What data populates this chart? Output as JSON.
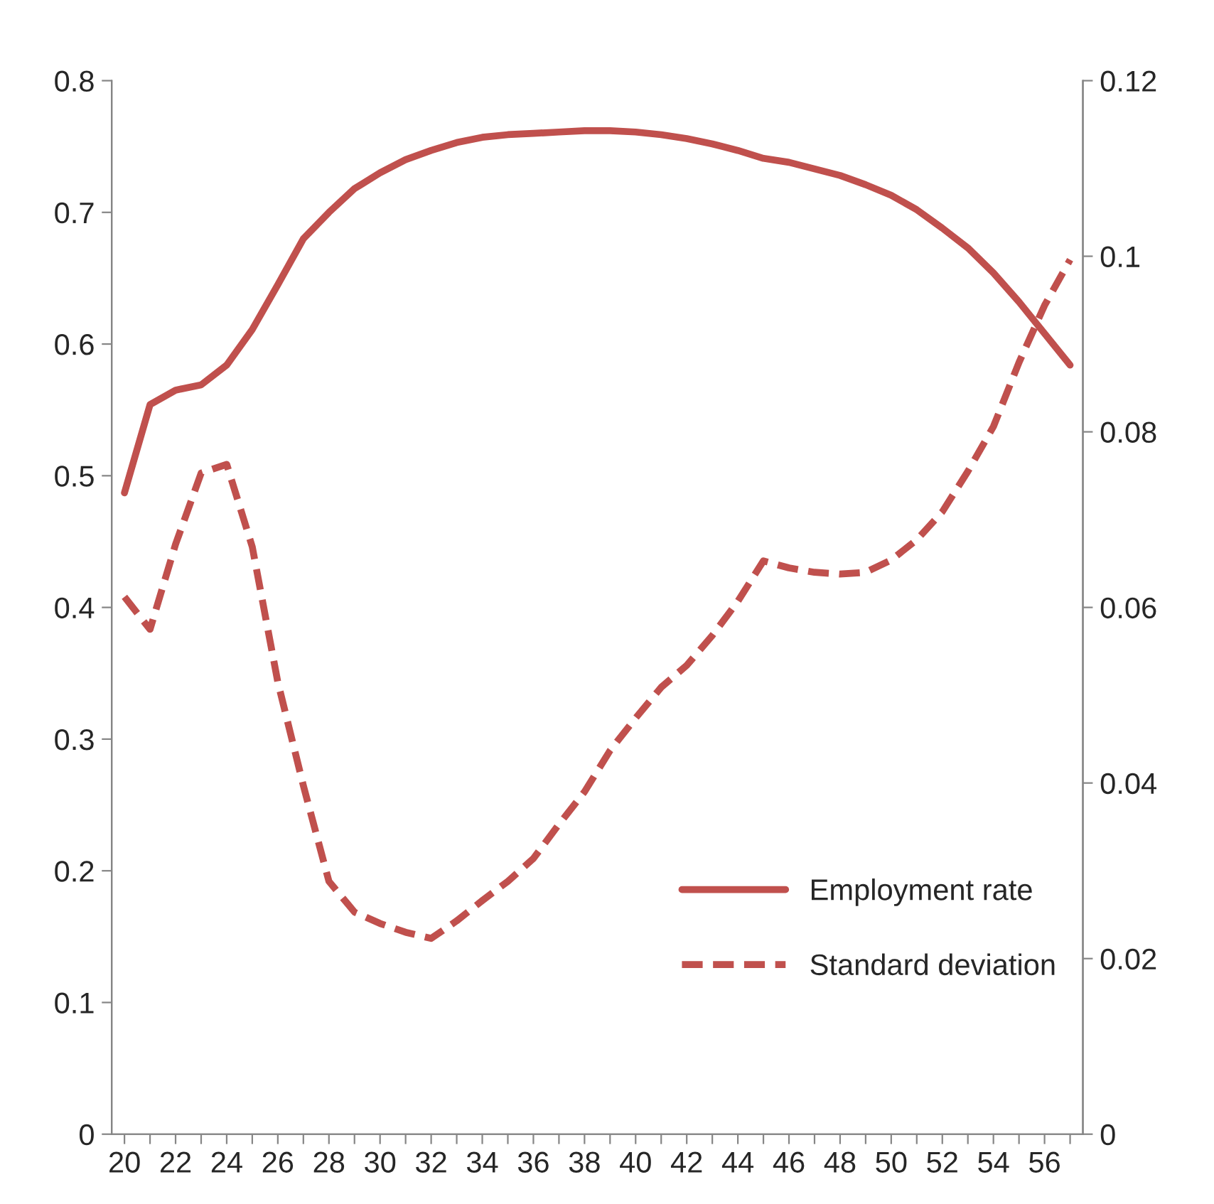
{
  "chart_data": {
    "type": "line",
    "categories": [
      "20",
      null,
      "22",
      null,
      "24",
      null,
      "26",
      null,
      "28",
      null,
      "30",
      null,
      "32",
      null,
      "34",
      null,
      "36",
      null,
      "38",
      null,
      "40",
      null,
      "42",
      null,
      "44",
      null,
      "46",
      null,
      "48",
      null,
      "50",
      null,
      "52",
      null,
      "54",
      null,
      "56",
      null
    ],
    "series": [
      {
        "name": "Employment rate",
        "color": "#c0504d",
        "line_style": "solid",
        "values": [
          0.487,
          0.554,
          0.565,
          0.569,
          0.584,
          0.611,
          0.645,
          0.68,
          0.7,
          0.718,
          0.73,
          0.74,
          0.747,
          0.753,
          0.757,
          0.759,
          0.76,
          0.761,
          0.762,
          0.762,
          0.761,
          0.759,
          0.756,
          0.752,
          0.747,
          0.741,
          0.738,
          0.733,
          0.728,
          0.721,
          0.713,
          0.702,
          0.688,
          0.673,
          0.654,
          0.632,
          0.608,
          0.584
        ]
      },
      {
        "name": "Standard deviation",
        "color": "#c0504d",
        "line_style": "dashed",
        "axis": "y2",
        "values": [
          0.0612,
          0.0575,
          0.0672,
          0.0753,
          0.0763,
          0.0669,
          0.0515,
          0.0397,
          0.0288,
          0.0253,
          0.024,
          0.023,
          0.0223,
          0.0243,
          0.0266,
          0.0288,
          0.0314,
          0.0353,
          0.039,
          0.0437,
          0.0474,
          0.0509,
          0.0534,
          0.0568,
          0.0607,
          0.0653,
          0.0645,
          0.064,
          0.0638,
          0.064,
          0.0654,
          0.0677,
          0.0709,
          0.0755,
          0.0806,
          0.0879,
          0.0944,
          0.0996
        ]
      }
    ],
    "ylim": [
      0,
      0.8
    ],
    "yticks": [
      0,
      0.1,
      0.2,
      0.3,
      0.4,
      0.5,
      0.6,
      0.7,
      0.8
    ],
    "y2lim": [
      0,
      0.12
    ],
    "y2ticks": [
      0,
      0.02,
      0.04,
      0.06,
      0.08,
      0.1,
      0.12
    ],
    "legend": "bottom right",
    "grid": false,
    "marker": "none"
  }
}
